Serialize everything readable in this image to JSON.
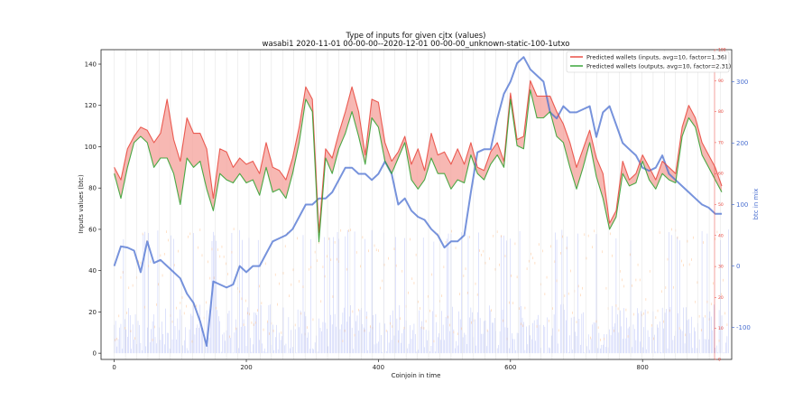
{
  "chart_data": {
    "type": "line",
    "title": "Type of inputs for given cjtx (values)",
    "subtitle": "wasabi1 2020-11-01 00-00-00--2020-12-01 00-00-00_unknown-static-100-1utxo",
    "xlabel": "Coinjoin in time",
    "ylabel": "Inputs values (btc)",
    "y2label": "btc in mix",
    "xlim": [
      -20,
      935
    ],
    "ylim": [
      -3,
      147
    ],
    "y3lim": [
      0,
      100
    ],
    "y2lim": [
      -152,
      352
    ],
    "x_ticks": [
      0,
      200,
      400,
      600,
      800
    ],
    "y_ticks": [
      0,
      20,
      40,
      60,
      80,
      100,
      120,
      140
    ],
    "y3_ticks": [
      0,
      10,
      20,
      30,
      40,
      50,
      60,
      70,
      80,
      90,
      100
    ],
    "y2_ticks": [
      -100,
      0,
      100,
      200,
      300
    ],
    "legend_position": "top-right",
    "colors": {
      "inputs": "#e8443a",
      "outputs": "#2ca02c",
      "fill": "#f4a09a",
      "mix": "#4a6fd0",
      "bars_blue": "#6a7ff0",
      "bars_orange": "#ffb070"
    },
    "series": [
      {
        "name": "Predicted wallets (inputs, avg=10, factor=1.36)",
        "axis": "y3",
        "x": [
          0,
          10,
          20,
          30,
          40,
          50,
          60,
          70,
          80,
          90,
          100,
          110,
          120,
          130,
          140,
          150,
          160,
          170,
          180,
          190,
          200,
          210,
          220,
          230,
          240,
          250,
          260,
          270,
          280,
          290,
          300,
          310,
          320,
          330,
          340,
          350,
          360,
          370,
          380,
          390,
          400,
          410,
          420,
          430,
          440,
          450,
          460,
          470,
          480,
          490,
          500,
          510,
          520,
          530,
          540,
          550,
          560,
          570,
          580,
          590,
          600,
          610,
          620,
          630,
          640,
          650,
          660,
          670,
          680,
          690,
          700,
          710,
          720,
          730,
          740,
          750,
          760,
          770,
          780,
          790,
          800,
          810,
          820,
          830,
          840,
          850,
          860,
          870,
          880,
          890,
          900,
          910,
          920
        ],
        "values": [
          62,
          58,
          68,
          72,
          75,
          74,
          70,
          73,
          84,
          71,
          64,
          78,
          73,
          73,
          68,
          52,
          68,
          67,
          62,
          65,
          63,
          64,
          60,
          70,
          62,
          61,
          58,
          65,
          75,
          88,
          84,
          41,
          68,
          65,
          73,
          80,
          88,
          80,
          66,
          84,
          83,
          70,
          64,
          67,
          72,
          63,
          68,
          61,
          73,
          66,
          67,
          63,
          68,
          63,
          70,
          62,
          61,
          67,
          70,
          64,
          86,
          71,
          72,
          90,
          85,
          85,
          85,
          80,
          76,
          70,
          62,
          68,
          74,
          65,
          60,
          44,
          48,
          64,
          58,
          60,
          66,
          62,
          58,
          64,
          62,
          60,
          75,
          82,
          78,
          70,
          66,
          62,
          56
        ]
      },
      {
        "name": "Predicted wallets (outputs, avg=10, factor=2.31)",
        "axis": "y3",
        "x": [
          0,
          10,
          20,
          30,
          40,
          50,
          60,
          70,
          80,
          90,
          100,
          110,
          120,
          130,
          140,
          150,
          160,
          170,
          180,
          190,
          200,
          210,
          220,
          230,
          240,
          250,
          260,
          270,
          280,
          290,
          300,
          310,
          320,
          330,
          340,
          350,
          360,
          370,
          380,
          390,
          400,
          410,
          420,
          430,
          440,
          450,
          460,
          470,
          480,
          490,
          500,
          510,
          520,
          530,
          540,
          550,
          560,
          570,
          580,
          590,
          600,
          610,
          620,
          630,
          640,
          650,
          660,
          670,
          680,
          690,
          700,
          710,
          720,
          730,
          740,
          750,
          760,
          770,
          780,
          790,
          800,
          810,
          820,
          830,
          840,
          850,
          860,
          870,
          880,
          890,
          900,
          910,
          920
        ],
        "values": [
          60,
          52,
          62,
          70,
          72,
          70,
          62,
          65,
          65,
          60,
          50,
          65,
          62,
          64,
          55,
          48,
          60,
          58,
          57,
          60,
          57,
          58,
          53,
          62,
          54,
          55,
          52,
          60,
          70,
          84,
          80,
          38,
          65,
          60,
          68,
          73,
          80,
          72,
          63,
          78,
          75,
          64,
          60,
          65,
          70,
          58,
          55,
          58,
          65,
          60,
          60,
          55,
          58,
          57,
          66,
          60,
          58,
          63,
          66,
          62,
          84,
          69,
          68,
          87,
          78,
          78,
          80,
          72,
          70,
          62,
          55,
          62,
          70,
          59,
          52,
          42,
          46,
          60,
          56,
          57,
          64,
          58,
          55,
          60,
          58,
          57,
          72,
          78,
          75,
          66,
          62,
          58,
          54
        ]
      },
      {
        "name": "btc in mix",
        "axis": "y2",
        "x": [
          0,
          10,
          20,
          30,
          40,
          50,
          60,
          70,
          80,
          90,
          100,
          110,
          120,
          130,
          140,
          150,
          160,
          170,
          180,
          190,
          200,
          210,
          220,
          230,
          240,
          250,
          260,
          270,
          280,
          290,
          300,
          310,
          320,
          330,
          340,
          350,
          360,
          370,
          380,
          390,
          400,
          410,
          420,
          430,
          440,
          450,
          460,
          470,
          480,
          490,
          500,
          510,
          520,
          530,
          540,
          550,
          560,
          570,
          580,
          590,
          600,
          610,
          620,
          630,
          640,
          650,
          660,
          670,
          680,
          690,
          700,
          710,
          720,
          730,
          740,
          750,
          760,
          770,
          780,
          790,
          800,
          810,
          820,
          830,
          840,
          850,
          860,
          870,
          880,
          890,
          900,
          910,
          920
        ],
        "values": [
          0,
          32,
          30,
          25,
          -10,
          40,
          5,
          10,
          0,
          -10,
          -20,
          -45,
          -60,
          -90,
          -130,
          -25,
          -30,
          -35,
          -30,
          0,
          -10,
          0,
          0,
          20,
          40,
          45,
          50,
          60,
          80,
          100,
          100,
          110,
          110,
          120,
          140,
          160,
          160,
          150,
          150,
          140,
          150,
          170,
          150,
          100,
          110,
          90,
          80,
          75,
          60,
          50,
          30,
          40,
          40,
          50,
          120,
          185,
          190,
          190,
          240,
          280,
          300,
          330,
          340,
          320,
          310,
          300,
          250,
          240,
          260,
          250,
          250,
          255,
          260,
          210,
          250,
          260,
          230,
          200,
          190,
          180,
          160,
          155,
          160,
          180,
          150,
          140,
          130,
          120,
          110,
          100,
          95,
          85,
          85
        ]
      }
    ]
  }
}
